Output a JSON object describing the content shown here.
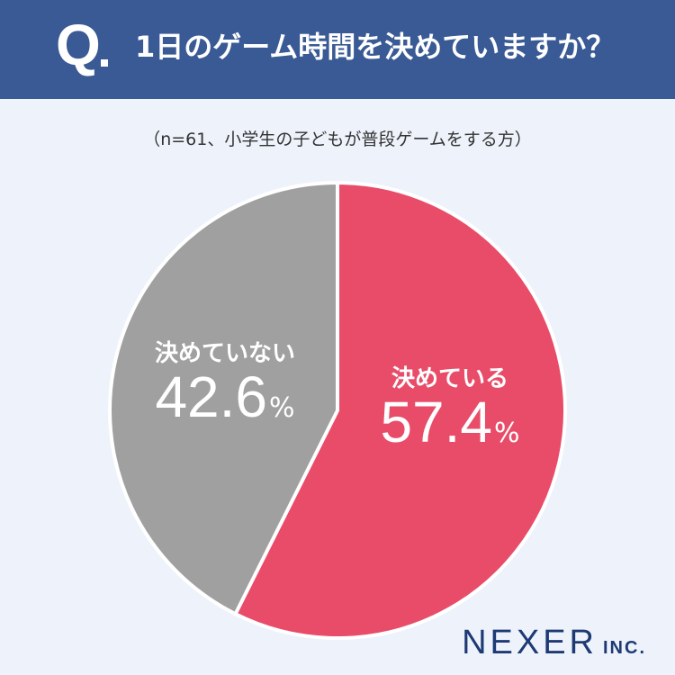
{
  "header": {
    "q_mark": "Q",
    "question": "1日のゲーム時間を決めていますか？"
  },
  "subtitle": "（n=61、小学生の子どもが普段ゲームをする方）",
  "chart_data": {
    "type": "pie",
    "title": "1日のゲーム時間を決めていますか？",
    "slices": [
      {
        "label": "決めている",
        "value": 57.4,
        "display_value": "57.4",
        "unit": "%",
        "color": "#e84c69"
      },
      {
        "label": "決めていない",
        "value": 42.6,
        "display_value": "42.6",
        "unit": "%",
        "color": "#a0a0a0"
      }
    ]
  },
  "colors": {
    "header_bg": "#3a5a95",
    "page_bg": "#eef3fb",
    "logo": "#1e3a74"
  },
  "logo": {
    "main": "NEXER",
    "sub": "INC."
  }
}
